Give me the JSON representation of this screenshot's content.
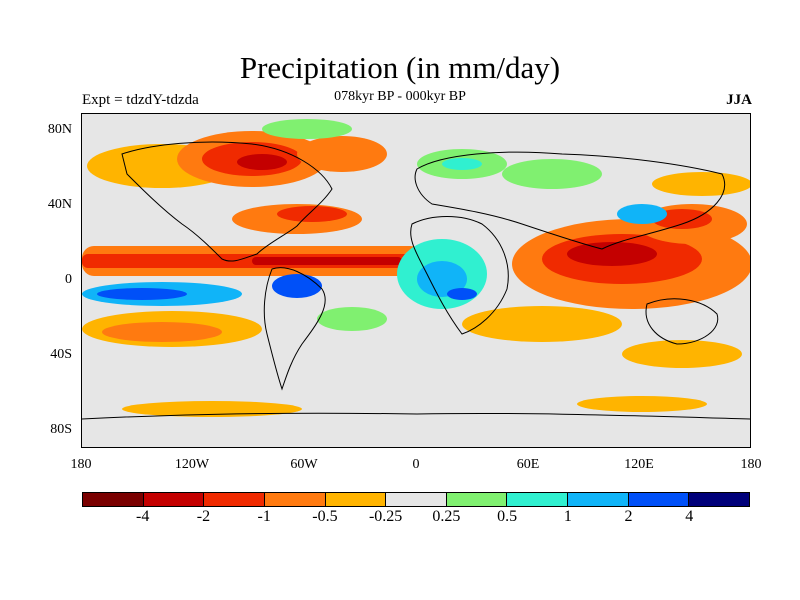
{
  "title": "Precipitation (in mm/day)",
  "experiment_label": "Expt = tdzdY-tdzda",
  "period_label": "078kyr BP - 000kyr BP",
  "season_label": "JJA",
  "lat_labels": [
    "80N",
    "40N",
    "0",
    "40S",
    "80S"
  ],
  "lon_labels": [
    "180",
    "120W",
    "60W",
    "0",
    "60E",
    "120E",
    "180"
  ],
  "colorbar": {
    "labels": [
      "-4",
      "-2",
      "-1",
      "-0.5",
      "-0.25",
      "0.25",
      "0.5",
      "1",
      "2",
      "4"
    ],
    "colors": [
      "#7a0000",
      "#c40000",
      "#f02a00",
      "#ff7a10",
      "#ffb400",
      "#e6e6e6",
      "#80f070",
      "#30f0d0",
      "#10b4f8",
      "#0050f8",
      "#00007a"
    ]
  },
  "colors": {
    "neutral": "#e6e6e6",
    "dry_strong": "#c40000",
    "dry_medium": "#f02a00",
    "dry_light": "#ff7a10",
    "dry_weak": "#ffb400",
    "wet_weak": "#80f070",
    "wet_light": "#30f0d0",
    "wet_medium": "#10b4f8",
    "wet_strong": "#0050f8"
  }
}
